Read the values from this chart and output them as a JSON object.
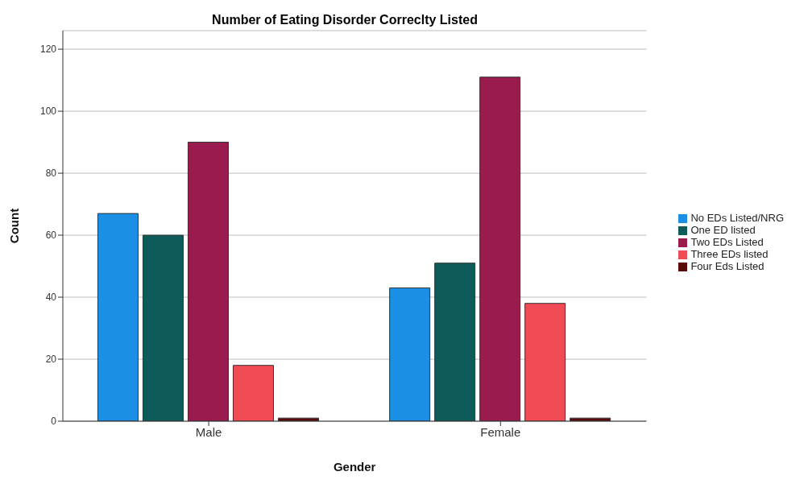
{
  "chart_data": {
    "type": "bar",
    "title": "Number of Eating Disorder Correclty Listed",
    "xlabel": "Gender",
    "ylabel": "Count",
    "categories": [
      "Male",
      "Female"
    ],
    "series": [
      {
        "name": "No EDs Listed/NRG",
        "color": "#1a8fe3",
        "values": [
          67,
          43
        ]
      },
      {
        "name": "One ED listed",
        "color": "#0e5c5a",
        "values": [
          60,
          51
        ]
      },
      {
        "name": "Two EDs Listed",
        "color": "#9a1b4e",
        "values": [
          90,
          111
        ]
      },
      {
        "name": "Three EDs listed",
        "color": "#f04a55",
        "values": [
          18,
          38
        ]
      },
      {
        "name": "Four Eds Listed",
        "color": "#5a0a0a",
        "values": [
          1,
          1
        ]
      }
    ],
    "ylim": [
      0,
      126
    ],
    "yticks": [
      0,
      20,
      40,
      60,
      80,
      100,
      120
    ],
    "grid": "y",
    "legend": "right"
  }
}
